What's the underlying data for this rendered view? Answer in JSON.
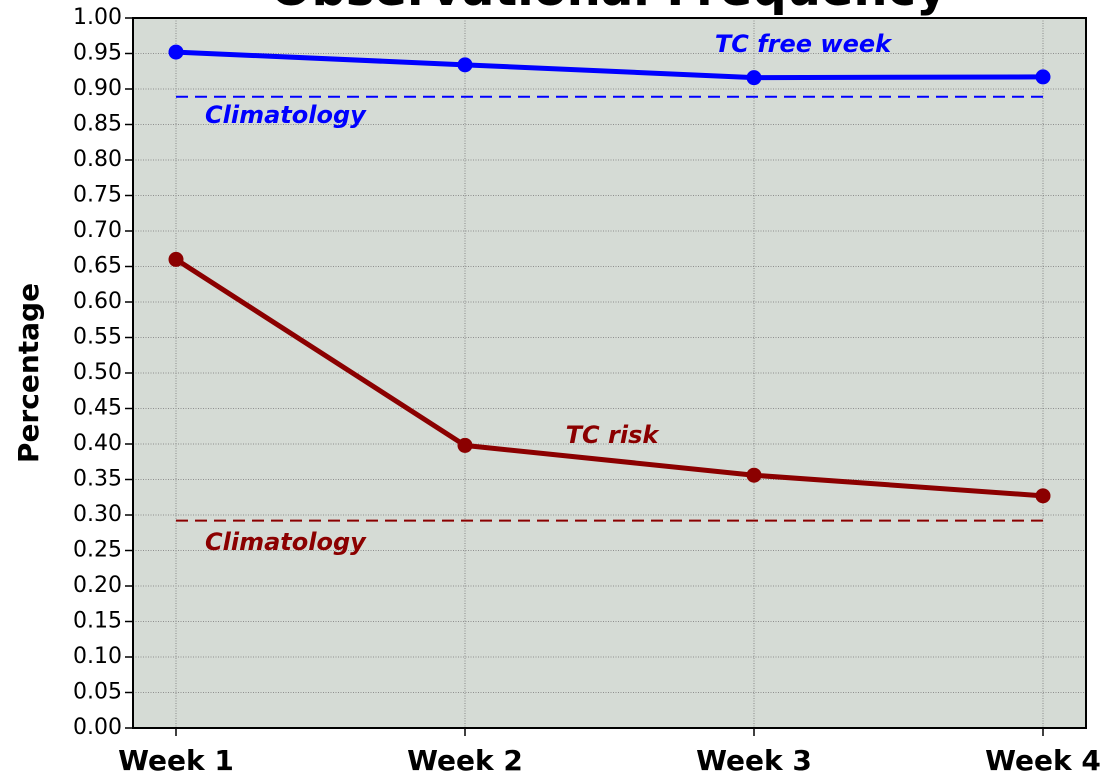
{
  "chart_data": {
    "type": "line",
    "title": "Observational Frequency",
    "ylabel": "Percentage",
    "categories": [
      "Week 1",
      "Week 2",
      "Week 3",
      "Week 4"
    ],
    "series": [
      {
        "name": "TC free week",
        "color": "#0000ff",
        "style": "solid",
        "markers": true,
        "values": [
          0.952,
          0.934,
          0.916,
          0.917
        ]
      },
      {
        "name": "Climatology",
        "color": "#0000ff",
        "style": "dashed",
        "markers": false,
        "values": [
          0.889,
          0.889,
          0.889,
          0.889
        ]
      },
      {
        "name": "TC risk",
        "color": "#8b0000",
        "style": "solid",
        "markers": true,
        "values": [
          0.66,
          0.398,
          0.356,
          0.327
        ]
      },
      {
        "name": "Climatology",
        "color": "#8b0000",
        "style": "dashed",
        "markers": false,
        "values": [
          0.292,
          0.292,
          0.292,
          0.292
        ]
      }
    ],
    "ylim": [
      0,
      1
    ],
    "yticks": [
      {
        "value": 0,
        "label": "0.00"
      },
      {
        "value": 0.05,
        "label": "0.05"
      },
      {
        "value": 0.1,
        "label": "0.10"
      },
      {
        "value": 0.15,
        "label": "0.15"
      },
      {
        "value": 0.2,
        "label": "0.20"
      },
      {
        "value": 0.25,
        "label": "0.25"
      },
      {
        "value": 0.3,
        "label": "0.30"
      },
      {
        "value": 0.35,
        "label": "0.35"
      },
      {
        "value": 0.4,
        "label": "0.40"
      },
      {
        "value": 0.45,
        "label": "0.45"
      },
      {
        "value": 0.5,
        "label": "0.50"
      },
      {
        "value": 0.55,
        "label": "0.55"
      },
      {
        "value": 0.6,
        "label": "0.60"
      },
      {
        "value": 0.65,
        "label": "0.65"
      },
      {
        "value": 0.7,
        "label": "0.70"
      },
      {
        "value": 0.75,
        "label": "0.75"
      },
      {
        "value": 0.8,
        "label": "0.80"
      },
      {
        "value": 0.85,
        "label": "0.85"
      },
      {
        "value": 0.9,
        "label": "0.90"
      },
      {
        "value": 0.95,
        "label": "0.95"
      },
      {
        "value": 1,
        "label": "1.00"
      }
    ],
    "grid": true
  }
}
